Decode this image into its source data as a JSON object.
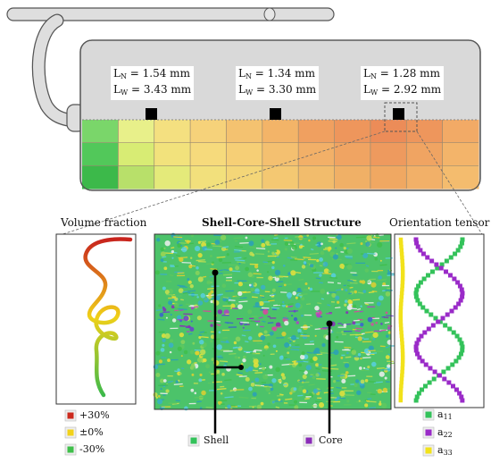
{
  "measurements": [
    {
      "ln_label": "L",
      "ln_sub": "N",
      "ln_value": " = 1.54 mm",
      "lw_label": "L",
      "lw_sub": "W",
      "lw_value": " = 3.43 mm"
    },
    {
      "ln_label": "L",
      "ln_sub": "N",
      "ln_value": " = 1.34 mm",
      "lw_label": "L",
      "lw_sub": "W",
      "lw_value": " = 3.30 mm"
    },
    {
      "ln_label": "L",
      "ln_sub": "N",
      "ln_value": " = 1.28 mm",
      "lw_label": "L",
      "lw_sub": "W",
      "lw_value": " = 2.92 mm"
    }
  ],
  "panels": {
    "volume_fraction": {
      "title": "Volume fraction"
    },
    "structure": {
      "title": "Shell-Core-Shell Structure"
    },
    "orientation": {
      "title": "Orientation tensor"
    }
  },
  "volume_legend": [
    {
      "label": "+30%",
      "color": "#cc2a1e"
    },
    {
      "label": "±0%",
      "color": "#f2d21a"
    },
    {
      "label": "-30%",
      "color": "#3fbf4a"
    }
  ],
  "structure_legend": [
    {
      "label": "Shell",
      "color": "#33c25a"
    },
    {
      "label": "Core",
      "color": "#8a2bb8"
    }
  ],
  "orientation_legend": [
    {
      "label": "a",
      "sub": "11",
      "color": "#33c25a"
    },
    {
      "label": "a",
      "sub": "22",
      "color": "#9a2bc8"
    },
    {
      "label": "a",
      "sub": "33",
      "color": "#f2e21a"
    }
  ],
  "colors": {
    "part_gray": "#d9d9d9",
    "outline": "#555555",
    "grid_line": "#9a8a70"
  }
}
